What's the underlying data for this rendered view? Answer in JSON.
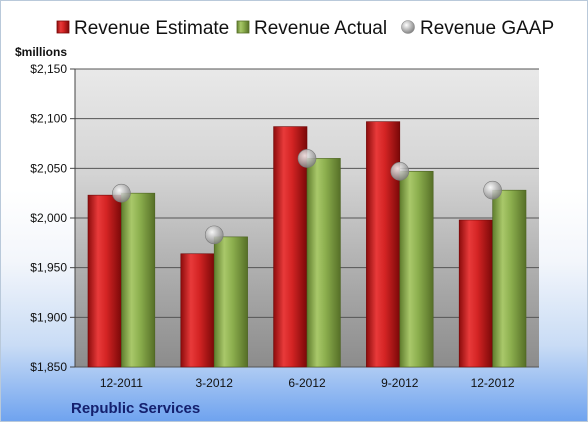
{
  "chart_data": {
    "type": "bar",
    "title": "",
    "unit_label": "$millions",
    "company": "Republic Services",
    "categories": [
      "12-2011",
      "3-2012",
      "6-2012",
      "9-2012",
      "12-2012"
    ],
    "series": [
      {
        "name": "Revenue Estimate",
        "kind": "bar",
        "color": "#cc1f1f",
        "values": [
          2023,
          1964,
          2092,
          2097,
          1998
        ]
      },
      {
        "name": "Revenue Actual",
        "kind": "bar",
        "color": "#8aac4c",
        "values": [
          2025,
          1981,
          2060,
          2047,
          2028
        ]
      },
      {
        "name": "Revenue GAAP",
        "kind": "marker",
        "color": "#b8b8b8",
        "values": [
          2025,
          1983,
          2060,
          2047,
          2028
        ]
      }
    ],
    "y_ticks": [
      "$1,850",
      "$1,900",
      "$1,950",
      "$2,000",
      "$2,050",
      "$2,100",
      "$2,150"
    ],
    "ylim": [
      1850,
      2150
    ],
    "y_step": 50,
    "grid": true,
    "legend_position": "top"
  }
}
